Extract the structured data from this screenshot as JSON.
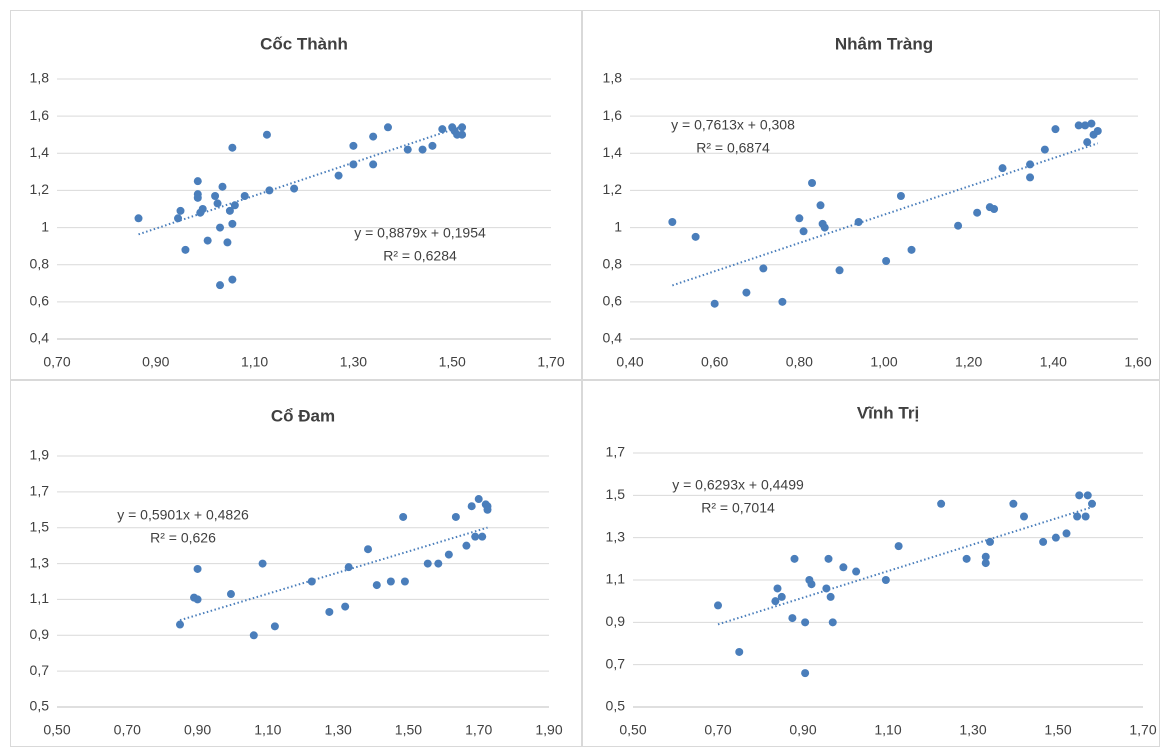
{
  "chart_data": [
    {
      "type": "scatter",
      "title": "Cốc Thành",
      "color": "#4a7ebb",
      "grid": true,
      "xlim": [
        0.7,
        1.7
      ],
      "xticks": [
        {
          "value": 0.7,
          "label": "0,70"
        },
        {
          "value": 0.9,
          "label": "0,90"
        },
        {
          "value": 1.1,
          "label": "1,10"
        },
        {
          "value": 1.3,
          "label": "1,30"
        },
        {
          "value": 1.5,
          "label": "1,50"
        },
        {
          "value": 1.7,
          "label": "1,70"
        }
      ],
      "ylim": [
        0.4,
        1.8
      ],
      "yticks": [
        {
          "value": 0.4,
          "label": "0,4"
        },
        {
          "value": 0.6,
          "label": "0,6"
        },
        {
          "value": 0.8,
          "label": "0,8"
        },
        1,
        {
          "value": 1.2,
          "label": "1,2"
        },
        {
          "value": 1.4,
          "label": "1,4"
        },
        {
          "value": 1.6,
          "label": "1,6"
        },
        {
          "value": 1.8,
          "label": "1,8"
        }
      ],
      "x": [
        0.865,
        0.945,
        0.95,
        0.96,
        0.985,
        0.985,
        0.985,
        0.99,
        0.995,
        1.005,
        1.02,
        1.025,
        1.03,
        1.035,
        1.03,
        1.045,
        1.05,
        1.055,
        1.055,
        1.055,
        1.06,
        1.08,
        1.125,
        1.13,
        1.18,
        1.27,
        1.3,
        1.3,
        1.34,
        1.34,
        1.37,
        1.41,
        1.44,
        1.46,
        1.48,
        1.5,
        1.505,
        1.51,
        1.52,
        1.52
      ],
      "values": [
        1.05,
        1.05,
        1.09,
        0.88,
        1.25,
        1.18,
        1.16,
        1.08,
        1.1,
        0.93,
        1.17,
        1.13,
        1.0,
        1.22,
        0.69,
        0.92,
        1.09,
        1.43,
        1.02,
        0.72,
        1.12,
        1.17,
        1.5,
        1.2,
        1.21,
        1.28,
        1.34,
        1.44,
        1.49,
        1.34,
        1.54,
        1.42,
        1.42,
        1.44,
        1.53,
        1.54,
        1.52,
        1.5,
        1.54,
        1.5
      ],
      "trendline": {
        "slope": 0.8879,
        "intercept": 0.1954,
        "label": "y = 0,8879x + 0,1954",
        "r2_label": "R² = 0,6284"
      }
    },
    {
      "type": "scatter",
      "title": "Nhâm Tràng",
      "color": "#4a7ebb",
      "grid": true,
      "xlim": [
        0.4,
        1.6
      ],
      "xticks": [
        {
          "value": 0.4,
          "label": "0,40"
        },
        {
          "value": 0.6,
          "label": "0,60"
        },
        {
          "value": 0.8,
          "label": "0,80"
        },
        {
          "value": 1.0,
          "label": "1,00"
        },
        {
          "value": 1.2,
          "label": "1,20"
        },
        {
          "value": 1.4,
          "label": "1,40"
        },
        {
          "value": 1.6,
          "label": "1,60"
        }
      ],
      "ylim": [
        0.4,
        1.8
      ],
      "yticks": [
        {
          "value": 0.4,
          "label": "0,4"
        },
        {
          "value": 0.6,
          "label": "0,6"
        },
        {
          "value": 0.8,
          "label": "0,8"
        },
        1,
        {
          "value": 1.2,
          "label": "1,2"
        },
        {
          "value": 1.4,
          "label": "1,4"
        },
        {
          "value": 1.6,
          "label": "1,6"
        },
        {
          "value": 1.8,
          "label": "1,8"
        }
      ],
      "x": [
        0.5,
        0.555,
        0.6,
        0.675,
        0.715,
        0.76,
        0.8,
        0.81,
        0.83,
        0.85,
        0.855,
        0.86,
        0.895,
        0.94,
        1.005,
        1.04,
        1.065,
        1.175,
        1.22,
        1.25,
        1.26,
        1.28,
        1.345,
        1.345,
        1.38,
        1.405,
        1.46,
        1.475,
        1.48,
        1.49,
        1.495,
        1.505
      ],
      "values": [
        1.03,
        0.95,
        0.59,
        0.65,
        0.78,
        0.6,
        1.05,
        0.98,
        1.24,
        1.12,
        1.02,
        1.0,
        0.77,
        1.03,
        0.82,
        1.17,
        0.88,
        1.01,
        1.08,
        1.11,
        1.1,
        1.32,
        1.34,
        1.27,
        1.42,
        1.53,
        1.55,
        1.55,
        1.46,
        1.56,
        1.5,
        1.52
      ],
      "trendline": {
        "slope": 0.7613,
        "intercept": 0.308,
        "label": "y = 0,7613x + 0,308",
        "r2_label": "R² = 0,6874"
      }
    },
    {
      "type": "scatter",
      "title": "Cổ Đam",
      "color": "#4a7ebb",
      "grid": true,
      "xlim": [
        0.5,
        1.9
      ],
      "xticks": [
        {
          "value": 0.5,
          "label": "0,50"
        },
        {
          "value": 0.7,
          "label": "0,70"
        },
        {
          "value": 0.9,
          "label": "0,90"
        },
        {
          "value": 1.1,
          "label": "1,10"
        },
        {
          "value": 1.3,
          "label": "1,30"
        },
        {
          "value": 1.5,
          "label": "1,50"
        },
        {
          "value": 1.7,
          "label": "1,70"
        },
        {
          "value": 1.9,
          "label": "1,90"
        }
      ],
      "ylim": [
        0.5,
        1.9
      ],
      "yticks": [
        {
          "value": 0.5,
          "label": "0,5"
        },
        {
          "value": 0.7,
          "label": "0,7"
        },
        {
          "value": 0.9,
          "label": "0,9"
        },
        {
          "value": 1.1,
          "label": "1,1"
        },
        {
          "value": 1.3,
          "label": "1,3"
        },
        {
          "value": 1.5,
          "label": "1,5"
        },
        {
          "value": 1.7,
          "label": "1,7"
        },
        {
          "value": 1.9,
          "label": "1,9"
        }
      ],
      "x": [
        0.85,
        0.89,
        0.9,
        0.9,
        0.995,
        1.06,
        1.085,
        1.12,
        1.225,
        1.275,
        1.32,
        1.33,
        1.385,
        1.41,
        1.45,
        1.485,
        1.49,
        1.555,
        1.585,
        1.615,
        1.635,
        1.665,
        1.68,
        1.69,
        1.7,
        1.71,
        1.72,
        1.725,
        1.725
      ],
      "values": [
        0.96,
        1.11,
        1.27,
        1.1,
        1.13,
        0.9,
        1.3,
        0.95,
        1.2,
        1.03,
        1.06,
        1.28,
        1.38,
        1.18,
        1.2,
        1.56,
        1.2,
        1.3,
        1.3,
        1.35,
        1.56,
        1.4,
        1.62,
        1.45,
        1.66,
        1.45,
        1.63,
        1.6,
        1.62
      ],
      "trendline": {
        "slope": 0.5901,
        "intercept": 0.4826,
        "label": "y = 0,5901x + 0,4826",
        "r2_label": "R² = 0,626"
      }
    },
    {
      "type": "scatter",
      "title": "Vĩnh Trị",
      "color": "#4a7ebb",
      "grid": true,
      "xlim": [
        0.5,
        1.7
      ],
      "xticks": [
        {
          "value": 0.5,
          "label": "0,50"
        },
        {
          "value": 0.7,
          "label": "0,70"
        },
        {
          "value": 0.9,
          "label": "0,90"
        },
        {
          "value": 1.1,
          "label": "1,10"
        },
        {
          "value": 1.3,
          "label": "1,30"
        },
        {
          "value": 1.5,
          "label": "1,50"
        },
        {
          "value": 1.7,
          "label": "1,70"
        }
      ],
      "ylim": [
        0.5,
        1.7
      ],
      "yticks": [
        {
          "value": 0.5,
          "label": "0,5"
        },
        {
          "value": 0.7,
          "label": "0,7"
        },
        {
          "value": 0.9,
          "label": "0,9"
        },
        {
          "value": 1.1,
          "label": "1,1"
        },
        {
          "value": 1.3,
          "label": "1,3"
        },
        {
          "value": 1.5,
          "label": "1,5"
        },
        {
          "value": 1.7,
          "label": "1,7"
        }
      ],
      "x": [
        0.7,
        0.75,
        0.835,
        0.84,
        0.85,
        0.875,
        0.88,
        0.905,
        0.905,
        0.915,
        0.92,
        0.955,
        0.96,
        0.965,
        0.97,
        0.995,
        1.025,
        1.095,
        1.125,
        1.225,
        1.285,
        1.33,
        1.33,
        1.34,
        1.395,
        1.42,
        1.465,
        1.495,
        1.52,
        1.545,
        1.55,
        1.565,
        1.57,
        1.58
      ],
      "values": [
        0.98,
        0.76,
        1.0,
        1.06,
        1.02,
        0.92,
        1.2,
        0.9,
        0.66,
        1.1,
        1.08,
        1.06,
        1.2,
        1.02,
        0.9,
        1.16,
        1.14,
        1.1,
        1.26,
        1.46,
        1.2,
        1.21,
        1.18,
        1.28,
        1.46,
        1.4,
        1.28,
        1.3,
        1.32,
        1.4,
        1.5,
        1.4,
        1.5,
        1.46
      ],
      "trendline": {
        "slope": 0.6293,
        "intercept": 0.4499,
        "label": "y = 0,6293x + 0,4499",
        "r2_label": "R² = 0,7014"
      }
    }
  ]
}
